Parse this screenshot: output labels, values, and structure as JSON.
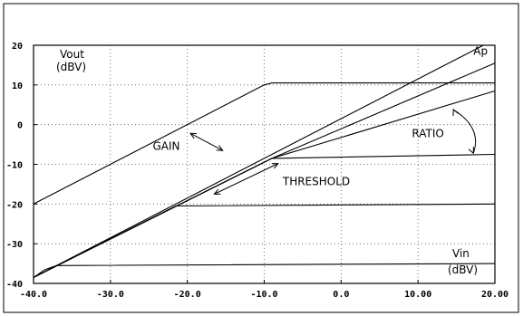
{
  "chart_data": {
    "type": "line",
    "xlim": [
      -40,
      20
    ],
    "ylim": [
      -40,
      20
    ],
    "x_ticks": [
      "-40.0",
      "-30.0",
      "-20.0",
      "-10.0",
      "0.0",
      "10.00",
      "20.00"
    ],
    "x_tick_values": [
      -40,
      -30,
      -20,
      -10,
      0,
      10,
      20
    ],
    "y_ticks": [
      "20",
      "10",
      "0",
      "-10",
      "-20",
      "-30",
      "-40"
    ],
    "y_tick_values": [
      20,
      10,
      0,
      -10,
      -20,
      -30,
      -40
    ],
    "grid": true,
    "ylabel_lines": [
      "Vout",
      "(dBV)"
    ],
    "xlabel_lines": [
      "Vin",
      "(dBV)"
    ],
    "series": [
      {
        "x": [
          -40,
          -10,
          -9,
          20
        ],
        "y": [
          -20,
          10,
          10.5,
          10.5
        ]
      },
      {
        "x": [
          -40,
          18.5
        ],
        "y": [
          -38.5,
          20
        ]
      },
      {
        "x": [
          -40,
          -9,
          20
        ],
        "y": [
          -38.5,
          -8.5,
          15.5
        ]
      },
      {
        "x": [
          -40,
          -9,
          20
        ],
        "y": [
          -38.5,
          -8.5,
          8.5
        ]
      },
      {
        "x": [
          -40,
          -9,
          20
        ],
        "y": [
          -38.5,
          -8.5,
          -7.5
        ]
      },
      {
        "x": [
          -40,
          -21.5,
          20
        ],
        "y": [
          -38.5,
          -20.5,
          -20
        ]
      },
      {
        "x": [
          -40,
          -38.5,
          -37,
          20
        ],
        "y": [
          -38.5,
          -36.5,
          -35.5,
          -35
        ]
      }
    ],
    "annotations": [
      {
        "text": "Ap",
        "x": 17.2,
        "y": 17.6
      },
      {
        "text": "GAIN",
        "x": -24.5,
        "y": -6.3
      },
      {
        "text": "RATIO",
        "x": 9.2,
        "y": -3.2
      },
      {
        "text": "THRESHOLD",
        "x": -7.6,
        "y": -15.3
      }
    ],
    "arrows": [
      {
        "from": [
          -19.6,
          -2.2
        ],
        "to": [
          -15.4,
          -6.5
        ]
      },
      {
        "from": [
          -8.2,
          -9.8
        ],
        "to": [
          -16.5,
          -17.5
        ]
      },
      {
        "from": [
          14.6,
          3.8
        ],
        "to": [
          17.2,
          -7.2
        ]
      }
    ]
  }
}
